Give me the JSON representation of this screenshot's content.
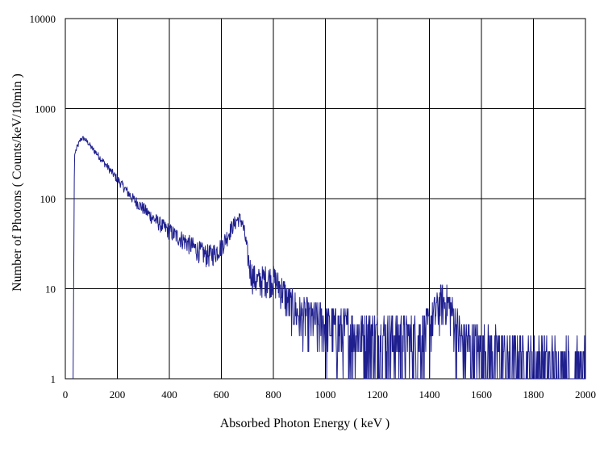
{
  "chart_data": {
    "type": "line",
    "title": "",
    "xlabel": "Absorbed Photon Energy ( keV )",
    "ylabel": "Number  of Photons ( Counts/keV/10min )",
    "xlim": [
      0,
      2000
    ],
    "ylim": [
      1,
      10000
    ],
    "yscale": "log",
    "grid": true,
    "legend": "none",
    "x_ticks": [
      {
        "value": 0,
        "label": "0"
      },
      {
        "value": 200,
        "label": "200"
      },
      {
        "value": 400,
        "label": "400"
      },
      {
        "value": 600,
        "label": "600"
      },
      {
        "value": 800,
        "label": "800"
      },
      {
        "value": 1000,
        "label": "1000"
      },
      {
        "value": 1200,
        "label": "1200"
      },
      {
        "value": 1400,
        "label": "1400"
      },
      {
        "value": 1600,
        "label": "1600"
      },
      {
        "value": 1800,
        "label": "1800"
      },
      {
        "value": 2000,
        "label": "2000"
      }
    ],
    "y_ticks": [
      {
        "value": 1,
        "label": "1"
      },
      {
        "value": 10,
        "label": "10"
      },
      {
        "value": 100,
        "label": "100"
      },
      {
        "value": 1000,
        "label": "1000"
      },
      {
        "value": 10000,
        "label": "10000"
      }
    ],
    "series": [
      {
        "color": "#1f1f8f",
        "x": [
          30,
          35,
          40,
          50,
          60,
          70,
          80,
          90,
          100,
          120,
          140,
          160,
          180,
          200,
          220,
          240,
          260,
          280,
          300,
          320,
          340,
          360,
          380,
          400,
          420,
          440,
          460,
          480,
          500,
          520,
          540,
          560,
          580,
          600,
          620,
          640,
          660,
          670,
          680,
          690,
          700,
          710,
          720,
          740,
          760,
          780,
          800,
          820,
          840,
          860,
          880,
          900,
          950,
          1000,
          1050,
          1100,
          1150,
          1200,
          1250,
          1300,
          1350,
          1400,
          1420,
          1440,
          1460,
          1480,
          1500,
          1520,
          1550,
          1600,
          1650,
          1700,
          1750,
          1800,
          1850,
          1900,
          1950,
          2000
        ],
        "y": [
          1,
          300,
          340,
          400,
          460,
          470,
          440,
          410,
          370,
          320,
          270,
          230,
          195,
          165,
          140,
          118,
          100,
          88,
          78,
          68,
          60,
          54,
          48,
          44,
          40,
          37,
          34,
          31,
          28,
          26,
          24,
          24,
          26,
          30,
          37,
          48,
          58,
          60,
          55,
          40,
          25,
          17,
          14,
          12,
          13,
          13,
          13,
          11,
          9,
          7,
          6,
          5,
          4.5,
          4,
          3.6,
          3.4,
          3.2,
          3,
          2.9,
          2.8,
          2.9,
          3.5,
          5.5,
          7,
          7.3,
          6.5,
          4,
          2.5,
          2.3,
          2,
          1.8,
          1.6,
          1.5,
          1.4,
          1.3,
          1.2,
          1.2,
          1.1
        ]
      }
    ]
  }
}
